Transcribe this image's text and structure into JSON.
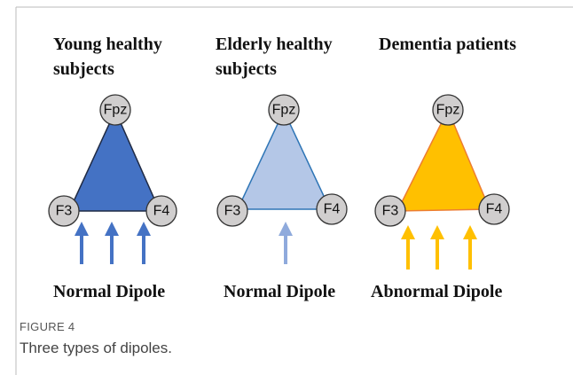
{
  "panels": [
    {
      "title": "Young healthy subjects",
      "nodes": [
        "Fpz",
        "F3",
        "F4"
      ],
      "dipole": "Normal Dipole"
    },
    {
      "title": "Elderly healthy subjects",
      "nodes": [
        "Fpz",
        "F3",
        "F4"
      ],
      "dipole": "Normal Dipole"
    },
    {
      "title": "Dementia patients",
      "nodes": [
        "Fpz",
        "F3",
        "F4"
      ],
      "dipole": "Abnormal Dipole"
    }
  ],
  "figure": {
    "label": "FIGURE 4",
    "caption": "Three types of dipoles."
  }
}
